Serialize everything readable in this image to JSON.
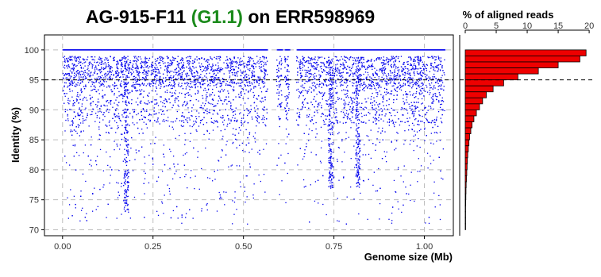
{
  "title": {
    "prefix": "AG-915-F11 ",
    "highlight": "(G1.1)",
    "suffix": " on ERR598969",
    "highlight_color": "#1a8a1a"
  },
  "chart_data": [
    {
      "type": "scatter",
      "xlabel": "Genome size (Mb)",
      "ylabel": "Identity (%)",
      "xlim": [
        -0.05,
        1.08
      ],
      "ylim": [
        69,
        102.5
      ],
      "x_ticks": [
        "0.00",
        "0.25",
        "0.50",
        "0.75",
        "1.00"
      ],
      "x_tick_values": [
        0,
        0.25,
        0.5,
        0.75,
        1.0
      ],
      "y_ticks": [
        "70",
        "75",
        "80",
        "85",
        "90",
        "95",
        "100"
      ],
      "y_tick_values": [
        70,
        75,
        80,
        85,
        90,
        95,
        100
      ],
      "threshold_identity": 95,
      "grid": true,
      "point_color": "#0000ee",
      "genome_length_mb": 1.055,
      "coverage_gaps_mb": [
        [
          0.565,
          0.59
        ],
        [
          0.605,
          0.612
        ],
        [
          0.625,
          0.645
        ]
      ],
      "dense_clusters_mb": [
        0.175,
        0.74,
        0.815
      ]
    },
    {
      "type": "bar",
      "orientation": "horizontal",
      "title": "% of aligned reads",
      "x_ticks": [
        "0",
        "5",
        "10",
        "15",
        "20"
      ],
      "x_tick_values": [
        0,
        5,
        10,
        15,
        20
      ],
      "xlim": [
        0,
        20.5
      ],
      "bar_color": "#ee0000",
      "categories": [
        99.5,
        98.5,
        97.5,
        96.5,
        95.5,
        94.5,
        93.5,
        92.5,
        91.5,
        90.5,
        89.5,
        88.5,
        87.5,
        86.5,
        85.5,
        84.5,
        83.5,
        82.5,
        81.5,
        80.5,
        79.5,
        78.5,
        77.5,
        76.5,
        75.5,
        74.5,
        73.5,
        72.5,
        71.5,
        70.5
      ],
      "values": [
        19.5,
        18.5,
        15.0,
        11.8,
        8.5,
        6.2,
        4.5,
        3.4,
        2.8,
        2.3,
        1.8,
        1.4,
        1.1,
        0.9,
        0.7,
        0.6,
        0.5,
        0.4,
        0.35,
        0.3,
        0.25,
        0.2,
        0.15,
        0.12,
        0.1,
        0.08,
        0.06,
        0.05,
        0.04,
        0.03
      ]
    }
  ]
}
